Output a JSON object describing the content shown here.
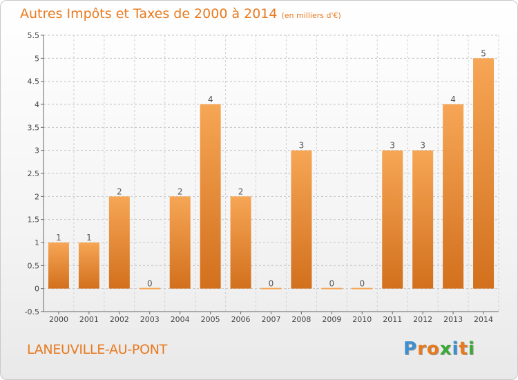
{
  "header": {
    "title": "Autres Impôts et Taxes de 2000 à 2014",
    "subtitle": "(en milliers d'€)"
  },
  "footer": {
    "commune": "LANEUVILLE-AU-PONT",
    "logo": "Proxiti"
  },
  "colors": {
    "accent": "#e87a1e",
    "bar_top": "#f6a655",
    "bar_bottom": "#d2701d",
    "logo_letters": [
      "#3e8fd1",
      "#e87a1e",
      "#e87a1e",
      "#3aaa35",
      "#3e8fd1",
      "#e87a1e",
      "#3aaa35"
    ]
  },
  "chart_data": {
    "type": "bar",
    "title": "Autres Impôts et Taxes de 2000 à 2014",
    "subtitle": "(en milliers d'€)",
    "categories": [
      "2000",
      "2001",
      "2002",
      "2003",
      "2004",
      "2005",
      "2006",
      "2007",
      "2008",
      "2009",
      "2010",
      "2011",
      "2012",
      "2013",
      "2014"
    ],
    "values": [
      1,
      1,
      2,
      0,
      2,
      4,
      2,
      0,
      3,
      0,
      0,
      3,
      3,
      4,
      5
    ],
    "data_labels": [
      "1",
      "1",
      "2",
      "0",
      "2",
      "4",
      "2",
      "0",
      "3",
      "0",
      "0",
      "3",
      "3",
      "4",
      "5"
    ],
    "ylim": [
      -0.5,
      5.5
    ],
    "yticks": [
      "-0.5",
      "0",
      "0.5",
      "1",
      "1.5",
      "2",
      "2.5",
      "3",
      "3.5",
      "4",
      "4.5",
      "5",
      "5.5"
    ],
    "grid": "horizontal-dashed"
  }
}
